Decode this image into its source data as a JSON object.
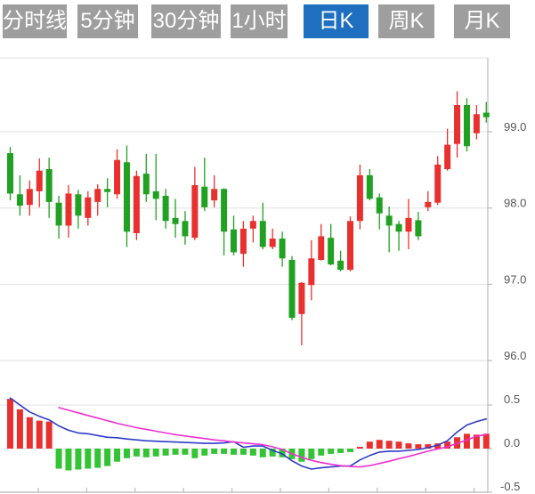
{
  "tabs": [
    {
      "label": "分时线",
      "selected": false
    },
    {
      "label": "5分钟",
      "selected": false
    },
    {
      "label": "30分钟",
      "selected": false
    },
    {
      "label": "1小时",
      "selected": false
    },
    {
      "label": "日K",
      "selected": true
    },
    {
      "label": "周K",
      "selected": false
    },
    {
      "label": "月K",
      "selected": false
    }
  ],
  "colors": {
    "up": "#e8312f",
    "down": "#21a121",
    "hist_up": "#e8312f",
    "hist_down": "#33c433",
    "dif_line": "#2e3bc8",
    "dea_line": "#ee30d0",
    "grid": "#e6e6e6",
    "zero_grid": "#eeeeee",
    "border": "#bbbbbb",
    "axis_text": "#555555",
    "tab_bg": "#9e9e9e",
    "tab_selected_bg": "#1e6fc0"
  },
  "chart_data": {
    "type": "candlestick",
    "title": "",
    "xlabel": "",
    "ylabel": "",
    "convention": "chinese (red = up, green = down)",
    "panels": [
      {
        "name": "price",
        "y_ticks": [
          99.0,
          98.0,
          97.0,
          96.0
        ],
        "ylim": [
          95.8,
          100.0
        ],
        "grid": true
      },
      {
        "name": "indicator",
        "y_ticks": [
          0.5,
          0.0,
          -0.5
        ],
        "ylim": [
          -0.5,
          0.5
        ],
        "grid": true
      }
    ],
    "candles_ohlc": [
      [
        98.72,
        98.8,
        98.1,
        98.19
      ],
      [
        98.18,
        98.43,
        97.9,
        98.03
      ],
      [
        98.04,
        98.36,
        97.9,
        98.25
      ],
      [
        98.22,
        98.65,
        98.01,
        98.49
      ],
      [
        98.51,
        98.66,
        97.87,
        98.08
      ],
      [
        98.07,
        98.16,
        97.6,
        97.77
      ],
      [
        97.77,
        98.3,
        97.61,
        98.19
      ],
      [
        98.18,
        98.24,
        97.73,
        97.9
      ],
      [
        97.87,
        98.22,
        97.77,
        98.14
      ],
      [
        98.08,
        98.31,
        97.9,
        98.25
      ],
      [
        98.25,
        98.39,
        98.01,
        98.21
      ],
      [
        98.18,
        98.77,
        98.12,
        98.63
      ],
      [
        98.6,
        98.82,
        97.49,
        97.69
      ],
      [
        97.67,
        98.49,
        97.58,
        98.42
      ],
      [
        98.45,
        98.71,
        98.08,
        98.18
      ],
      [
        98.22,
        98.71,
        97.84,
        98.12
      ],
      [
        98.16,
        98.25,
        97.73,
        97.83
      ],
      [
        97.87,
        98.12,
        97.61,
        97.79
      ],
      [
        97.83,
        97.96,
        97.52,
        97.63
      ],
      [
        97.61,
        98.54,
        97.58,
        98.3
      ],
      [
        98.28,
        98.66,
        97.96,
        98.01
      ],
      [
        98.1,
        98.43,
        98.01,
        98.25
      ],
      [
        98.25,
        98.26,
        97.38,
        97.69
      ],
      [
        97.72,
        97.9,
        97.38,
        97.42
      ],
      [
        97.4,
        97.83,
        97.23,
        97.73
      ],
      [
        97.73,
        97.9,
        97.55,
        97.83
      ],
      [
        97.83,
        98.07,
        97.46,
        97.49
      ],
      [
        97.49,
        97.73,
        97.46,
        97.6
      ],
      [
        97.6,
        97.69,
        97.23,
        97.34
      ],
      [
        97.32,
        97.37,
        96.53,
        96.56
      ],
      [
        96.61,
        97.03,
        96.2,
        97.02
      ],
      [
        96.99,
        97.58,
        96.79,
        97.34
      ],
      [
        97.32,
        97.79,
        97.31,
        97.63
      ],
      [
        97.61,
        97.79,
        97.25,
        97.26
      ],
      [
        97.31,
        97.44,
        97.17,
        97.19
      ],
      [
        97.19,
        97.89,
        97.17,
        97.83
      ],
      [
        97.83,
        98.57,
        97.72,
        98.43
      ],
      [
        98.43,
        98.51,
        98.1,
        98.12
      ],
      [
        98.14,
        98.19,
        97.72,
        97.93
      ],
      [
        97.9,
        98.02,
        97.42,
        97.77
      ],
      [
        97.79,
        97.83,
        97.44,
        97.69
      ],
      [
        97.69,
        98.12,
        97.46,
        97.87
      ],
      [
        97.84,
        97.95,
        97.58,
        97.63
      ],
      [
        98.01,
        98.22,
        97.96,
        98.08
      ],
      [
        98.07,
        98.68,
        98.04,
        98.57
      ],
      [
        98.51,
        99.04,
        98.49,
        98.83
      ],
      [
        98.84,
        99.53,
        98.66,
        99.35
      ],
      [
        99.35,
        99.44,
        98.74,
        98.81
      ],
      [
        98.98,
        99.35,
        98.9,
        99.23
      ],
      [
        99.25,
        99.39,
        99.12,
        99.19
      ]
    ],
    "macd": {
      "histogram": [
        0.57,
        0.45,
        0.36,
        0.32,
        0.31,
        -0.23,
        -0.25,
        -0.24,
        -0.23,
        -0.22,
        -0.2,
        -0.15,
        -0.11,
        -0.09,
        -0.1,
        -0.09,
        -0.08,
        -0.07,
        -0.07,
        -0.11,
        -0.08,
        -0.06,
        -0.06,
        -0.07,
        -0.07,
        -0.08,
        -0.1,
        -0.09,
        -0.1,
        -0.12,
        -0.15,
        -0.12,
        -0.08,
        -0.06,
        -0.05,
        -0.04,
        0.02,
        0.08,
        0.1,
        0.09,
        0.08,
        0.06,
        0.05,
        0.05,
        0.06,
        0.08,
        0.13,
        0.17,
        0.16,
        0.17
      ],
      "dif": [
        0.58,
        0.5,
        0.42,
        0.37,
        0.33,
        0.26,
        0.21,
        0.18,
        0.17,
        0.15,
        0.13,
        0.125,
        0.11,
        0.1,
        0.09,
        0.085,
        0.08,
        0.075,
        0.07,
        0.065,
        0.06,
        0.06,
        0.065,
        0.08,
        0.015,
        0.03,
        0.03,
        -0.02,
        -0.06,
        -0.14,
        -0.2,
        -0.235,
        -0.22,
        -0.21,
        -0.2,
        -0.2,
        -0.13,
        -0.08,
        -0.04,
        -0.03,
        -0.03,
        -0.02,
        -0.01,
        0.01,
        0.04,
        0.09,
        0.19,
        0.27,
        0.31,
        0.34
      ],
      "dea": [
        null,
        null,
        null,
        null,
        null,
        0.47,
        0.44,
        0.41,
        0.38,
        0.35,
        0.32,
        0.29,
        0.265,
        0.24,
        0.22,
        0.2,
        0.18,
        0.16,
        0.145,
        0.13,
        0.115,
        0.1,
        0.09,
        0.075,
        0.065,
        0.055,
        0.045,
        0.02,
        -0.01,
        -0.06,
        -0.1,
        -0.135,
        -0.16,
        -0.18,
        -0.195,
        -0.205,
        -0.21,
        -0.195,
        -0.17,
        -0.145,
        -0.115,
        -0.09,
        -0.06,
        -0.03,
        -0.005,
        0.02,
        0.06,
        0.1,
        0.14,
        0.165
      ]
    }
  }
}
